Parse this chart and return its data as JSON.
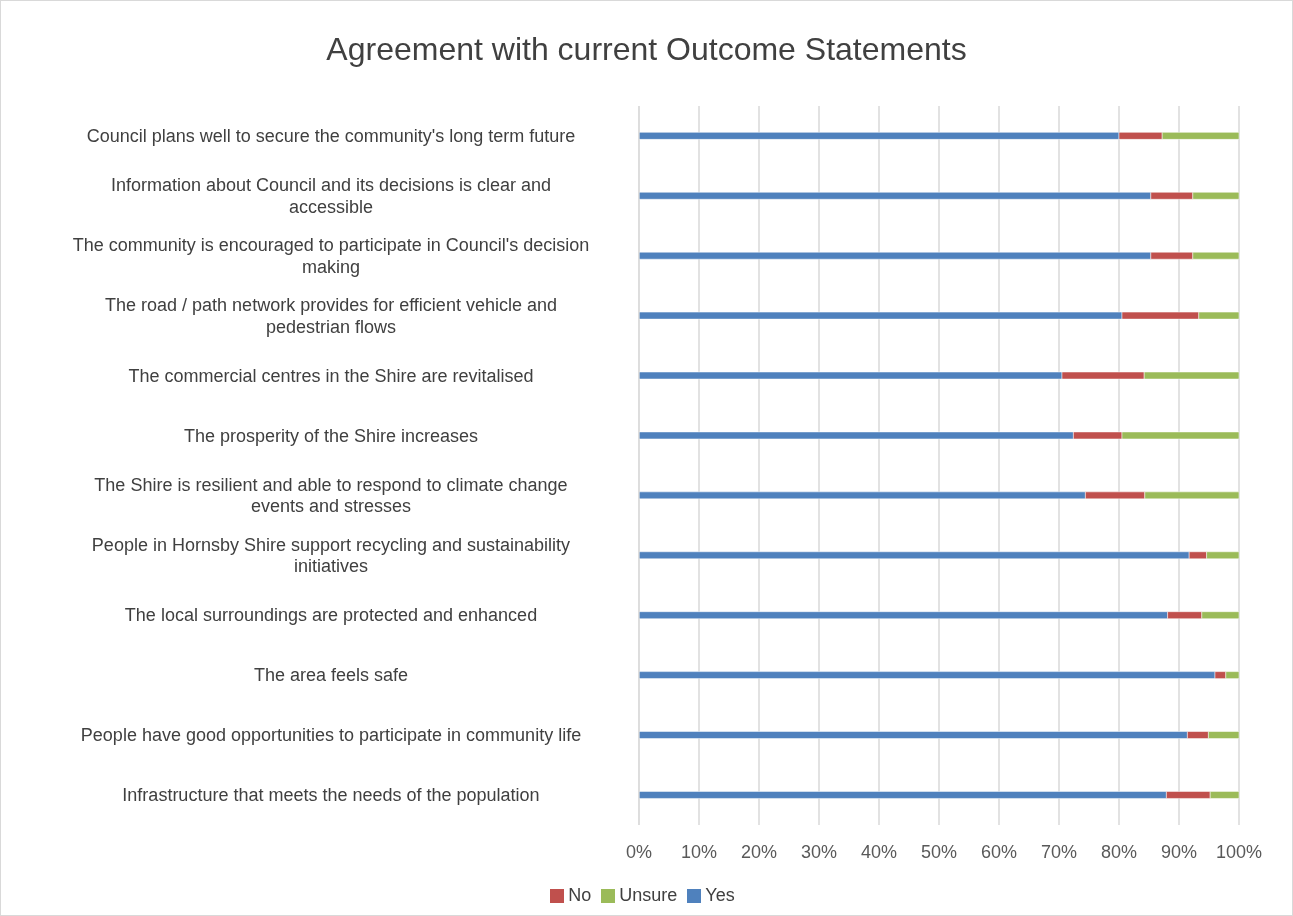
{
  "chart_data": {
    "type": "bar",
    "orientation": "horizontal",
    "stacked": true,
    "title": "Agreement with current Outcome Statements",
    "categories": [
      "Council plans well to secure the community's long term future",
      "Information about Council and its decisions is clear and accessible",
      "The community is encouraged to participate in Council's decision making",
      "The road / path network provides for efficient vehicle and pedestrian flows",
      "The commercial centres in the Shire are revitalised",
      "The prosperity of the Shire increases",
      "The Shire is resilient and able to respond to climate change events and stresses",
      "People in Hornsby Shire support recycling and sustainability initiatives",
      "The local surroundings are protected and enhanced",
      "The area feels safe",
      "People have good opportunities to participate in community life",
      "Infrastructure that meets the needs of the population"
    ],
    "series": [
      {
        "name": "Yes",
        "color": "#4f81bd",
        "values": [
          80,
          85.3,
          85.3,
          80.5,
          70.5,
          72.4,
          74.4,
          91.7,
          88.1,
          96,
          91.4,
          87.9
        ]
      },
      {
        "name": "No",
        "color": "#c0504d",
        "values": [
          7.2,
          7,
          7,
          12.8,
          13.7,
          8.1,
          9.9,
          2.9,
          5.7,
          1.8,
          3.5,
          7.3
        ]
      },
      {
        "name": "Unsure",
        "color": "#9bbb59",
        "values": [
          12.8,
          7.7,
          7.7,
          6.7,
          15.8,
          19.5,
          15.7,
          5.4,
          6.2,
          2.2,
          5.1,
          4.8
        ]
      }
    ],
    "xlim": [
      0,
      100
    ],
    "xticks": [
      {
        "value": 0,
        "label": "0%"
      },
      {
        "value": 10,
        "label": "10%"
      },
      {
        "value": 20,
        "label": "20%"
      },
      {
        "value": 30,
        "label": "30%"
      },
      {
        "value": 40,
        "label": "40%"
      },
      {
        "value": 50,
        "label": "50%"
      },
      {
        "value": 60,
        "label": "60%"
      },
      {
        "value": 70,
        "label": "70%"
      },
      {
        "value": 80,
        "label": "80%"
      },
      {
        "value": 90,
        "label": "90%"
      },
      {
        "value": 100,
        "label": "100%"
      }
    ],
    "grid": "x",
    "legend": "bottom"
  }
}
